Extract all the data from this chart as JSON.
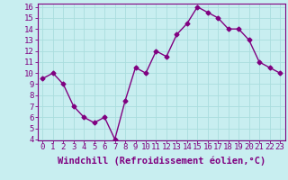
{
  "x": [
    0,
    1,
    2,
    3,
    4,
    5,
    6,
    7,
    8,
    9,
    10,
    11,
    12,
    13,
    14,
    15,
    16,
    17,
    18,
    19,
    20,
    21,
    22,
    23
  ],
  "y": [
    9.5,
    10.0,
    9.0,
    7.0,
    6.0,
    5.5,
    6.0,
    4.0,
    7.5,
    10.5,
    10.0,
    12.0,
    11.5,
    13.5,
    14.5,
    16.0,
    15.5,
    15.0,
    14.0,
    14.0,
    13.0,
    11.0,
    10.5,
    10.0
  ],
  "xlabel": "Windchill (Refroidissement éolien,°C)",
  "ylim_min": 4,
  "ylim_max": 16,
  "xlim_min": -0.5,
  "xlim_max": 23.5,
  "yticks": [
    4,
    5,
    6,
    7,
    8,
    9,
    10,
    11,
    12,
    13,
    14,
    15,
    16
  ],
  "xticks": [
    0,
    1,
    2,
    3,
    4,
    5,
    6,
    7,
    8,
    9,
    10,
    11,
    12,
    13,
    14,
    15,
    16,
    17,
    18,
    19,
    20,
    21,
    22,
    23
  ],
  "line_color": "#800080",
  "marker": "D",
  "marker_size": 2.5,
  "bg_color": "#c8eef0",
  "grid_color": "#aadddd",
  "xlabel_fontsize": 7.5,
  "tick_fontsize": 6.5,
  "linewidth": 1.0
}
